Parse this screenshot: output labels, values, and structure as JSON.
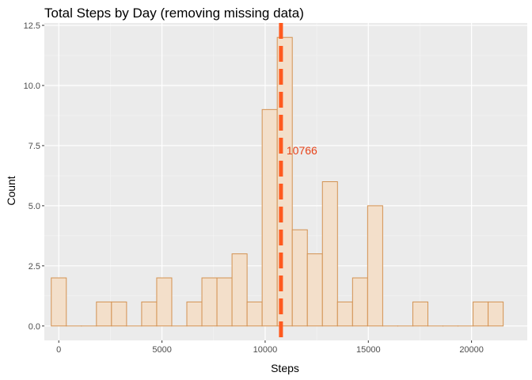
{
  "chart_data": {
    "type": "bar",
    "title": "Total Steps by Day (removing missing data)",
    "xlabel": "Steps",
    "ylabel": "Count",
    "xlim": [
      -700,
      22700
    ],
    "ylim": [
      -0.6,
      12.6
    ],
    "x_ticks": [
      0,
      5000,
      10000,
      15000,
      20000
    ],
    "x_tick_labels": [
      "0",
      "5000",
      "10000",
      "15000",
      "20000"
    ],
    "y_ticks": [
      0,
      2.5,
      5,
      7.5,
      10,
      12.5
    ],
    "y_tick_labels": [
      "0.0",
      "2.5",
      "5.0",
      "7.5",
      "10.0",
      "12.5"
    ],
    "grid": true,
    "bin_width": 730,
    "bins": [
      {
        "x0": -365,
        "count": 2
      },
      {
        "x0": 365,
        "count": 0
      },
      {
        "x0": 1095,
        "count": 0
      },
      {
        "x0": 1825,
        "count": 1
      },
      {
        "x0": 2555,
        "count": 1
      },
      {
        "x0": 3285,
        "count": 0
      },
      {
        "x0": 4015,
        "count": 1
      },
      {
        "x0": 4745,
        "count": 2
      },
      {
        "x0": 5475,
        "count": 0
      },
      {
        "x0": 6205,
        "count": 1
      },
      {
        "x0": 6935,
        "count": 2
      },
      {
        "x0": 7665,
        "count": 2
      },
      {
        "x0": 8395,
        "count": 3
      },
      {
        "x0": 9125,
        "count": 1
      },
      {
        "x0": 9855,
        "count": 9
      },
      {
        "x0": 10585,
        "count": 12
      },
      {
        "x0": 11315,
        "count": 4
      },
      {
        "x0": 12045,
        "count": 3
      },
      {
        "x0": 12775,
        "count": 6
      },
      {
        "x0": 13505,
        "count": 1
      },
      {
        "x0": 14235,
        "count": 2
      },
      {
        "x0": 14965,
        "count": 5
      },
      {
        "x0": 15695,
        "count": 0
      },
      {
        "x0": 16425,
        "count": 0
      },
      {
        "x0": 17155,
        "count": 1
      },
      {
        "x0": 17885,
        "count": 0
      },
      {
        "x0": 18615,
        "count": 0
      },
      {
        "x0": 19345,
        "count": 0
      },
      {
        "x0": 20075,
        "count": 1
      },
      {
        "x0": 20805,
        "count": 1
      }
    ],
    "mean_line": {
      "x": 10766,
      "label": "10766"
    },
    "colors": {
      "bar_fill": "#f3dfca",
      "bar_stroke": "#d39252",
      "mean_line": "#ff5a1f",
      "annotation": "#e8441a",
      "panel_bg": "#ebebeb",
      "grid_major": "#ffffff",
      "grid_minor": "#f5f5f5"
    }
  }
}
